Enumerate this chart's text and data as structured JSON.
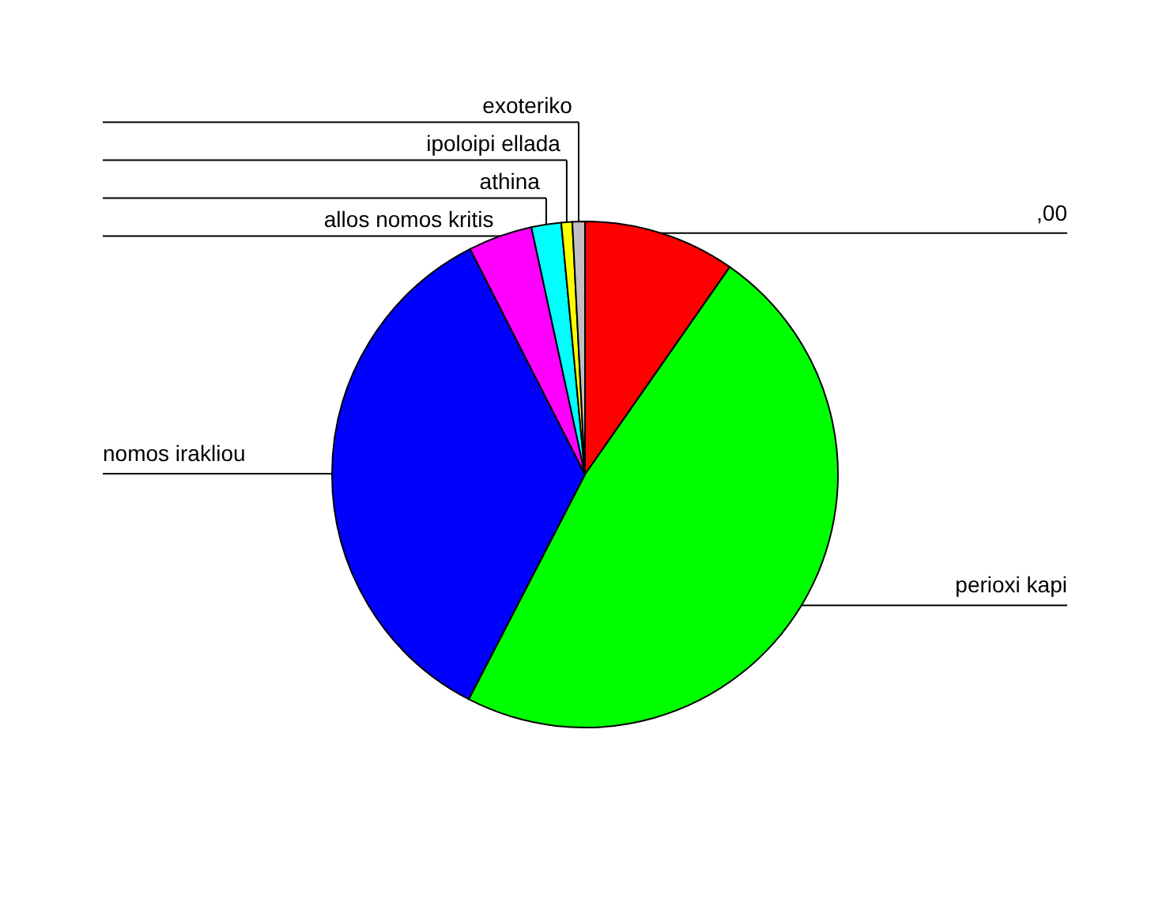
{
  "chart_data": {
    "type": "pie",
    "categories": [
      ",00",
      "perioxi kapi",
      "nomos irakliou",
      "allos nomos kritis",
      "athina",
      "ipoloipi ellada",
      "exoteriko"
    ],
    "values": [
      9.7,
      47.9,
      34.9,
      4.1,
      1.9,
      0.7,
      0.8
    ],
    "colors": [
      "#ff0000",
      "#00ff00",
      "#0000ff",
      "#ff00ff",
      "#00ffff",
      "#ffff00",
      "#c0c0c0"
    ]
  }
}
